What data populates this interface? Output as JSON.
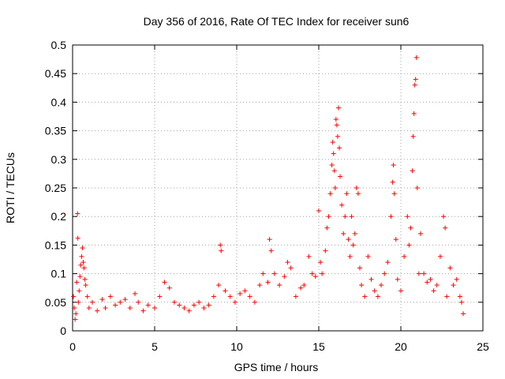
{
  "chart_data": {
    "type": "scatter",
    "title": "Day 356 of 2016, Rate Of TEC Index for receiver sun6",
    "xlabel": "GPS time / hours",
    "ylabel": "ROTI / TECUs",
    "xlim": [
      0,
      25
    ],
    "ylim": [
      0,
      0.5
    ],
    "x_ticks": [
      0,
      5,
      10,
      15,
      20,
      25
    ],
    "y_ticks": [
      0,
      0.05,
      0.1,
      0.15,
      0.2,
      0.25,
      0.3,
      0.35,
      0.4,
      0.45,
      0.5
    ],
    "x_tick_labels": [
      "0",
      "5",
      "10",
      "15",
      "20",
      "25"
    ],
    "y_tick_labels": [
      "0",
      "0.05",
      "0.1",
      "0.15",
      "0.2",
      "0.25",
      "0.3",
      "0.35",
      "0.4",
      "0.45",
      "0.5"
    ],
    "grid": true,
    "marker": "+",
    "series_color": "#ff0000",
    "series": [
      {
        "name": "ROTI",
        "points": [
          [
            0.05,
            0.06
          ],
          [
            0.1,
            0.04
          ],
          [
            0.15,
            0.02
          ],
          [
            0.2,
            0.03
          ],
          [
            0.25,
            0.085
          ],
          [
            0.3,
            0.205
          ],
          [
            0.32,
            0.162
          ],
          [
            0.35,
            0.05
          ],
          [
            0.4,
            0.07
          ],
          [
            0.45,
            0.095
          ],
          [
            0.5,
            0.115
          ],
          [
            0.55,
            0.13
          ],
          [
            0.6,
            0.145
          ],
          [
            0.65,
            0.12
          ],
          [
            0.7,
            0.11
          ],
          [
            0.75,
            0.09
          ],
          [
            0.8,
            0.08
          ],
          [
            0.9,
            0.06
          ],
          [
            1.0,
            0.04
          ],
          [
            1.2,
            0.05
          ],
          [
            1.5,
            0.035
          ],
          [
            1.8,
            0.055
          ],
          [
            2.0,
            0.04
          ],
          [
            2.3,
            0.06
          ],
          [
            2.6,
            0.045
          ],
          [
            2.9,
            0.05
          ],
          [
            3.2,
            0.055
          ],
          [
            3.5,
            0.04
          ],
          [
            3.8,
            0.065
          ],
          [
            4.0,
            0.05
          ],
          [
            4.3,
            0.035
          ],
          [
            4.6,
            0.045
          ],
          [
            5.0,
            0.04
          ],
          [
            5.3,
            0.06
          ],
          [
            5.6,
            0.085
          ],
          [
            5.9,
            0.075
          ],
          [
            6.2,
            0.05
          ],
          [
            6.5,
            0.045
          ],
          [
            6.8,
            0.04
          ],
          [
            7.1,
            0.035
          ],
          [
            7.4,
            0.045
          ],
          [
            7.7,
            0.05
          ],
          [
            8.0,
            0.04
          ],
          [
            8.3,
            0.045
          ],
          [
            8.6,
            0.06
          ],
          [
            8.9,
            0.08
          ],
          [
            9.0,
            0.15
          ],
          [
            9.05,
            0.14
          ],
          [
            9.3,
            0.07
          ],
          [
            9.6,
            0.06
          ],
          [
            9.9,
            0.05
          ],
          [
            10.2,
            0.065
          ],
          [
            10.5,
            0.07
          ],
          [
            10.8,
            0.06
          ],
          [
            11.1,
            0.05
          ],
          [
            11.4,
            0.08
          ],
          [
            11.6,
            0.1
          ],
          [
            11.9,
            0.085
          ],
          [
            12.0,
            0.16
          ],
          [
            12.1,
            0.14
          ],
          [
            12.3,
            0.1
          ],
          [
            12.6,
            0.08
          ],
          [
            12.9,
            0.095
          ],
          [
            13.1,
            0.12
          ],
          [
            13.3,
            0.11
          ],
          [
            13.6,
            0.06
          ],
          [
            13.9,
            0.075
          ],
          [
            14.1,
            0.08
          ],
          [
            14.4,
            0.13
          ],
          [
            14.6,
            0.1
          ],
          [
            14.8,
            0.095
          ],
          [
            15.0,
            0.21
          ],
          [
            15.1,
            0.12
          ],
          [
            15.2,
            0.1
          ],
          [
            15.4,
            0.14
          ],
          [
            15.5,
            0.18
          ],
          [
            15.6,
            0.2
          ],
          [
            15.7,
            0.24
          ],
          [
            15.8,
            0.29
          ],
          [
            15.85,
            0.33
          ],
          [
            15.9,
            0.31
          ],
          [
            15.95,
            0.28
          ],
          [
            16.0,
            0.25
          ],
          [
            16.05,
            0.37
          ],
          [
            16.1,
            0.36
          ],
          [
            16.15,
            0.34
          ],
          [
            16.2,
            0.39
          ],
          [
            16.25,
            0.32
          ],
          [
            16.3,
            0.27
          ],
          [
            16.4,
            0.22
          ],
          [
            16.5,
            0.17
          ],
          [
            16.6,
            0.2
          ],
          [
            16.7,
            0.24
          ],
          [
            16.8,
            0.16
          ],
          [
            16.9,
            0.13
          ],
          [
            17.0,
            0.2
          ],
          [
            17.1,
            0.15
          ],
          [
            17.2,
            0.17
          ],
          [
            17.3,
            0.25
          ],
          [
            17.4,
            0.24
          ],
          [
            17.5,
            0.11
          ],
          [
            17.6,
            0.08
          ],
          [
            17.8,
            0.06
          ],
          [
            18.0,
            0.13
          ],
          [
            18.2,
            0.09
          ],
          [
            18.4,
            0.07
          ],
          [
            18.6,
            0.06
          ],
          [
            18.8,
            0.08
          ],
          [
            19.0,
            0.1
          ],
          [
            19.2,
            0.12
          ],
          [
            19.4,
            0.2
          ],
          [
            19.5,
            0.26
          ],
          [
            19.55,
            0.29
          ],
          [
            19.6,
            0.24
          ],
          [
            19.7,
            0.16
          ],
          [
            19.8,
            0.09
          ],
          [
            20.0,
            0.07
          ],
          [
            20.2,
            0.13
          ],
          [
            20.4,
            0.2
          ],
          [
            20.5,
            0.15
          ],
          [
            20.6,
            0.18
          ],
          [
            20.7,
            0.28
          ],
          [
            20.75,
            0.34
          ],
          [
            20.8,
            0.38
          ],
          [
            20.85,
            0.43
          ],
          [
            20.9,
            0.44
          ],
          [
            20.95,
            0.478
          ],
          [
            21.0,
            0.25
          ],
          [
            21.1,
            0.1
          ],
          [
            21.2,
            0.17
          ],
          [
            21.4,
            0.1
          ],
          [
            21.6,
            0.085
          ],
          [
            21.8,
            0.09
          ],
          [
            22.0,
            0.07
          ],
          [
            22.2,
            0.08
          ],
          [
            22.4,
            0.13
          ],
          [
            22.6,
            0.2
          ],
          [
            22.7,
            0.18
          ],
          [
            22.8,
            0.06
          ],
          [
            23.0,
            0.11
          ],
          [
            23.2,
            0.08
          ],
          [
            23.4,
            0.09
          ],
          [
            23.6,
            0.06
          ],
          [
            23.7,
            0.05
          ],
          [
            23.8,
            0.03
          ]
        ]
      }
    ]
  }
}
